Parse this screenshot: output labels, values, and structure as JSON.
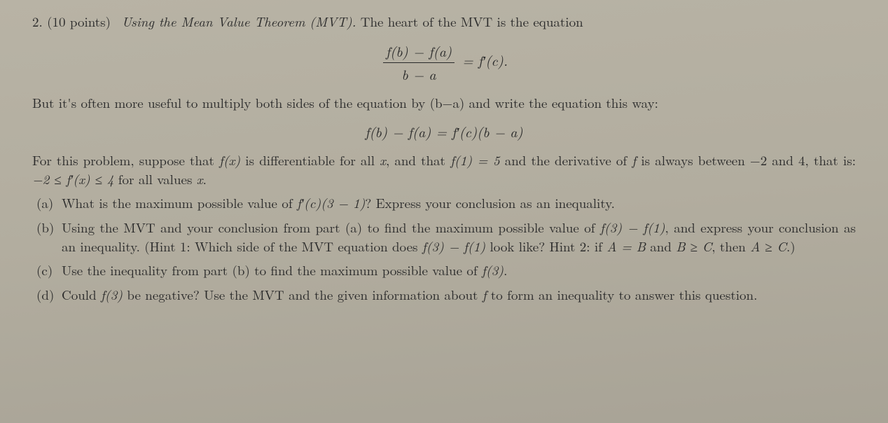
{
  "colors": {
    "background_top": "#b8b3a5",
    "background_bottom": "#a8a396",
    "text": "#2a2a2a"
  },
  "typography": {
    "family": "Computer Modern / Latin Modern (serif)",
    "body_fontsize_pt": 14,
    "equation_fontsize_pt": 15,
    "line_height": 1.4
  },
  "problem": {
    "number": "2.",
    "points": "(10 points)",
    "title_italic": "Using the Mean Value Theorem (MVT).",
    "intro_after_title": " The heart of the MVT is the equation",
    "eq1": {
      "frac_top": "f(b) − f(a)",
      "frac_bot": "b − a",
      "rhs": " = f′(c)."
    },
    "mid1": "But it's often more useful to multiply both sides of the equation by (b−a) and write the equation this way:",
    "eq2": "f(b) − f(a) = f′(c)(b − a)",
    "mid2_a": "For this problem, suppose that ",
    "mid2_b": " is differentiable for all ",
    "mid2_c": ", and that ",
    "mid2_d": " and the derivative of ",
    "mid2_e": " is always between −2 and 4, that is: ",
    "mid2_f": " for all values ",
    "mid2_g": ".",
    "fx": "f(x)",
    "x": "x",
    "f1eq5": "f(1) = 5",
    "f": "f",
    "deriv_bound": "−2 ≤ f′(x) ≤ 4"
  },
  "parts": {
    "a": {
      "label": "(a)",
      "t1": "What is the maximum possible value of ",
      "expr": "f′(c)(3 − 1)",
      "t2": "? Express your conclusion as an inequality."
    },
    "b": {
      "label": "(b)",
      "t1": "Using the MVT and your conclusion from part (a) to find the maximum possible value of ",
      "expr1": "f(3) − f(1)",
      "t2": ", and express your conclusion as an inequality. (Hint 1: Which side of the MVT equation does ",
      "expr2": "f(3) − f(1)",
      "t3": " look like? Hint 2: if ",
      "hint_a": "A = B",
      "t4": " and ",
      "hint_b": "B ≥ C",
      "t5": ", then ",
      "hint_c": "A ≥ C",
      "t6": ".)"
    },
    "c": {
      "label": "(c)",
      "t1": "Use the inequality from part (b) to find the maximum possible value of ",
      "expr": "f(3)",
      "t2": "."
    },
    "d": {
      "label": "(d)",
      "t1": "Could ",
      "expr": "f(3)",
      "t2": " be negative? Use the MVT and the given information about ",
      "f": "f",
      "t3": " to form an inequality to answer this question."
    }
  }
}
